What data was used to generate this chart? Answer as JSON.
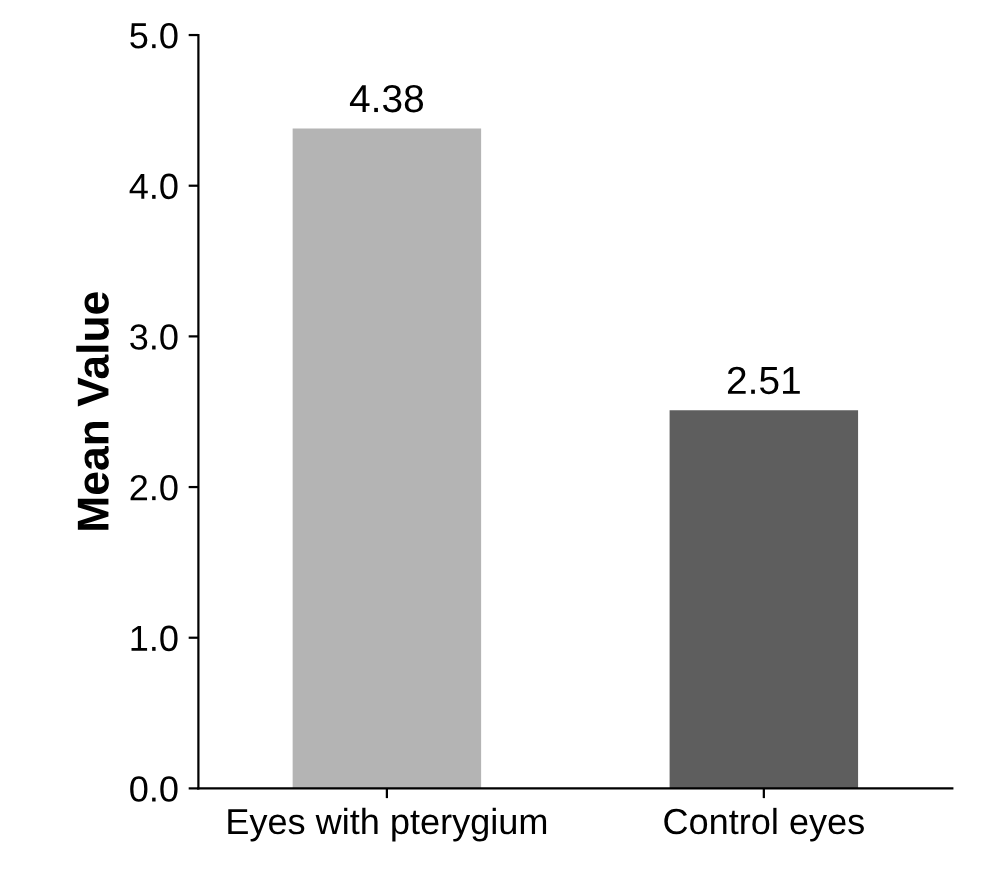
{
  "chart_data": {
    "type": "bar",
    "ylabel": "Mean Value",
    "categories": [
      "Eyes with pterygium",
      "Control eyes"
    ],
    "values": [
      4.38,
      2.51
    ],
    "colors": [
      "#b4b4b4",
      "#5e5e5e"
    ],
    "ylim": [
      0,
      5
    ],
    "yticks": [
      {
        "value": 0,
        "label": "0.0"
      },
      {
        "value": 1,
        "label": "1.0"
      },
      {
        "value": 2,
        "label": "2.0"
      },
      {
        "value": 3,
        "label": "3.0"
      },
      {
        "value": 4,
        "label": "4.0"
      },
      {
        "value": 5,
        "label": "5.0"
      }
    ],
    "data_labels": true,
    "grid": false,
    "legend": false
  }
}
